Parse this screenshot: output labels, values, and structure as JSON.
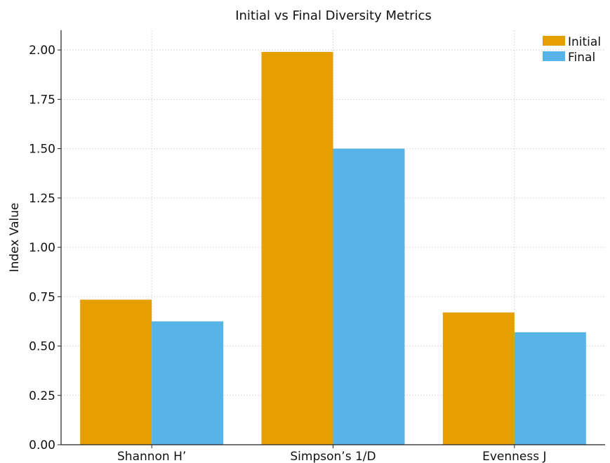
{
  "chart_data": {
    "type": "bar",
    "title": "Initial vs Final Diversity Metrics",
    "xlabel": "",
    "ylabel": "Index Value",
    "categories": [
      "Shannon H’",
      "Simpson’s 1/D",
      "Evenness J"
    ],
    "series": [
      {
        "name": "Initial",
        "color": "#E69F00",
        "values": [
          0.735,
          1.99,
          0.67
        ]
      },
      {
        "name": "Final",
        "color": "#56B4E9",
        "values": [
          0.625,
          1.5,
          0.57
        ]
      }
    ],
    "ylim": [
      0,
      2.1
    ],
    "yticks": [
      "0.00",
      "0.25",
      "0.50",
      "0.75",
      "1.00",
      "1.25",
      "1.50",
      "1.75",
      "2.00"
    ],
    "grid": true,
    "legend_position": "top-right"
  }
}
